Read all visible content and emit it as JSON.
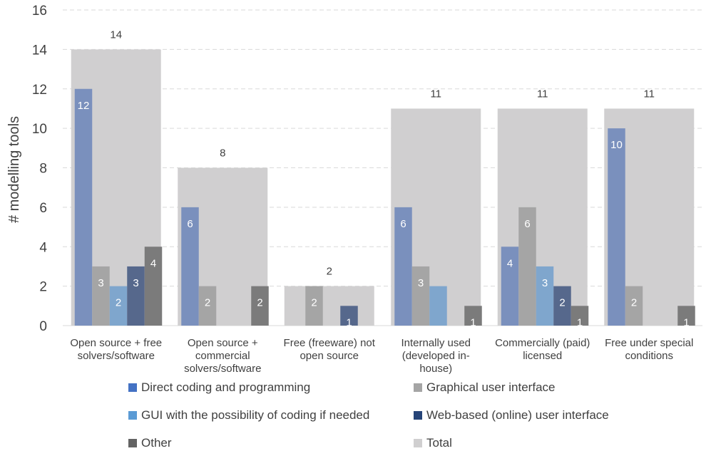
{
  "chart_data": {
    "type": "bar",
    "ylabel": "# modelling tools",
    "ylim": [
      0,
      16
    ],
    "yticks": [
      0,
      2,
      4,
      6,
      8,
      10,
      12,
      14,
      16
    ],
    "grid": true,
    "legend_position": "bottom",
    "categories": [
      [
        "Open source + free",
        "solvers/software"
      ],
      [
        "Open source +",
        "commercial",
        "solvers/software"
      ],
      [
        "Free (freeware) not",
        "open source"
      ],
      [
        "Internally used",
        "(developed in-",
        "house)"
      ],
      [
        "Commercially (paid)",
        "licensed"
      ],
      [
        "Free under special",
        "conditions"
      ]
    ],
    "total": {
      "name": "Total",
      "color": "#d0cfd0",
      "values": [
        14,
        8,
        2,
        11,
        11,
        11
      ]
    },
    "series": [
      {
        "name": "Direct coding and programming",
        "color": "#7a90bd",
        "legend_color": "#4472c4",
        "values": [
          12,
          6,
          null,
          6,
          4,
          10
        ]
      },
      {
        "name": "Graphical user interface",
        "color": "#a5a5a5",
        "legend_color": "#a5a5a5",
        "values": [
          3,
          2,
          2,
          3,
          6,
          2
        ]
      },
      {
        "name": "GUI with the possibility of coding if needed",
        "color": "#7fa6cd",
        "legend_color": "#5b9bd5",
        "values": [
          2,
          null,
          null,
          2,
          3,
          null
        ]
      },
      {
        "name": "Web-based (online) user interface",
        "color": "#56688c",
        "legend_color": "#264478",
        "values": [
          3,
          null,
          1,
          null,
          2,
          null
        ]
      },
      {
        "name": "Other",
        "color": "#7b7b7b",
        "legend_color": "#636363",
        "values": [
          4,
          2,
          null,
          1,
          1,
          1
        ]
      }
    ],
    "labels": [
      [
        "12",
        "3",
        "2",
        "3",
        "4"
      ],
      [
        "6",
        "2",
        "",
        "",
        "2"
      ],
      [
        "",
        "2",
        "",
        "1",
        ""
      ],
      [
        "6",
        "3",
        "",
        "",
        "1"
      ],
      [
        "4",
        "6",
        "3",
        "2",
        "1"
      ],
      [
        "10",
        "2",
        "",
        "",
        "1"
      ]
    ],
    "total_labels": [
      "14",
      "8",
      "2",
      "11",
      "11",
      "11"
    ]
  }
}
